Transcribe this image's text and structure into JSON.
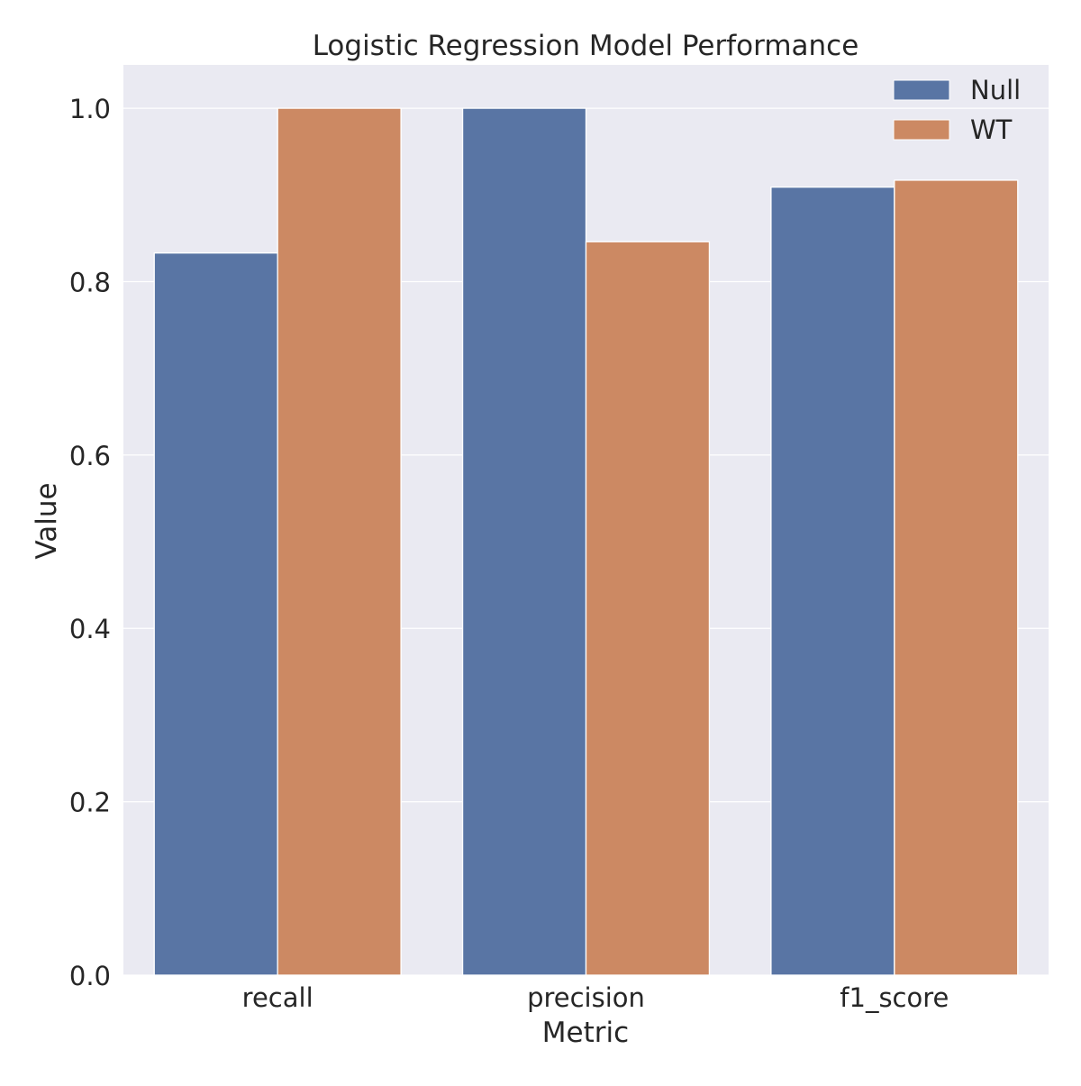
{
  "chart_data": {
    "type": "bar",
    "title": "Logistic Regression Model Performance",
    "xlabel": "Metric",
    "ylabel": "Value",
    "categories": [
      "recall",
      "precision",
      "f1_score"
    ],
    "series": [
      {
        "name": "Null",
        "values": [
          0.833,
          1.0,
          0.909
        ],
        "color": "#5975a4"
      },
      {
        "name": "WT",
        "values": [
          1.0,
          0.846,
          0.917
        ],
        "color": "#cc8963"
      }
    ],
    "ylim": [
      0,
      1.05
    ],
    "yticks": [
      "0.0",
      "0.2",
      "0.4",
      "0.6",
      "0.8",
      "1.0"
    ],
    "ytick_values": [
      0,
      0.2,
      0.4,
      0.6,
      0.8,
      1.0
    ],
    "grid": true,
    "legend_position": "top-right",
    "colors": {
      "background": "#eaeaf2",
      "grid": "#ffffff",
      "text": "#262626"
    }
  }
}
